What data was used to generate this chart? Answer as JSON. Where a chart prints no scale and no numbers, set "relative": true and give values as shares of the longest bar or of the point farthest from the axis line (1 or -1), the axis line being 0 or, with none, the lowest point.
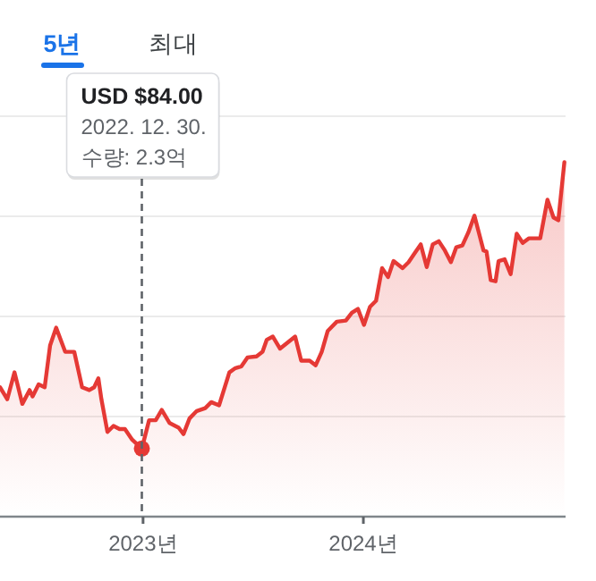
{
  "chart_data": {
    "type": "area",
    "relative": true,
    "x": [
      "2022-05-09",
      "2022-05-21",
      "2022-06-02",
      "2022-06-15",
      "2022-06-27",
      "2022-07-02",
      "2022-07-12",
      "2022-07-22",
      "2022-07-31",
      "2022-08-10",
      "2022-08-25",
      "2022-09-09",
      "2022-09-22",
      "2022-10-04",
      "2022-10-12",
      "2022-10-19",
      "2022-10-24",
      "2022-11-03",
      "2022-11-13",
      "2022-11-23",
      "2022-12-02",
      "2022-12-14",
      "2022-12-30",
      "2023-01-11",
      "2023-01-22",
      "2023-02-01",
      "2023-02-14",
      "2023-03-01",
      "2023-03-09",
      "2023-03-19",
      "2023-03-31",
      "2023-04-14",
      "2023-04-24",
      "2023-05-07",
      "2023-05-24",
      "2023-06-03",
      "2023-06-13",
      "2023-06-23",
      "2023-07-08",
      "2023-07-18",
      "2023-07-25",
      "2023-08-04",
      "2023-08-16",
      "2023-09-10",
      "2023-09-20",
      "2023-10-04",
      "2023-10-14",
      "2023-10-24",
      "2023-11-03",
      "2023-11-18",
      "2023-12-03",
      "2023-12-13",
      "2023-12-23",
      "2024-01-02",
      "2024-01-12",
      "2024-01-22",
      "2024-02-01",
      "2024-02-11",
      "2024-02-20",
      "2024-03-06",
      "2024-03-16",
      "2024-03-26",
      "2024-04-05",
      "2024-04-15",
      "2024-04-25",
      "2024-05-05",
      "2024-05-15",
      "2024-05-25",
      "2024-06-03",
      "2024-06-13",
      "2024-06-23",
      "2024-07-03",
      "2024-07-18",
      "2024-07-23",
      "2024-07-30",
      "2024-08-07",
      "2024-08-12",
      "2024-08-22",
      "2024-09-01",
      "2024-09-11",
      "2024-09-21",
      "2024-10-01",
      "2024-10-20",
      "2024-11-01",
      "2024-11-11",
      "2024-11-19",
      "2024-11-29"
    ],
    "series": [
      {
        "color": "#e53935",
        "values": [
          0.365,
          0.331,
          0.407,
          0.318,
          0.357,
          0.339,
          0.373,
          0.365,
          0.483,
          0.533,
          0.465,
          0.465,
          0.365,
          0.357,
          0.365,
          0.39,
          0.331,
          0.239,
          0.256,
          0.247,
          0.247,
          0.217,
          0.192,
          0.272,
          0.272,
          0.301,
          0.264,
          0.251,
          0.233,
          0.277,
          0.298,
          0.306,
          0.323,
          0.314,
          0.407,
          0.419,
          0.424,
          0.449,
          0.452,
          0.465,
          0.499,
          0.508,
          0.474,
          0.508,
          0.44,
          0.44,
          0.427,
          0.465,
          0.524,
          0.55,
          0.553,
          0.575,
          0.586,
          0.541,
          0.592,
          0.609,
          0.701,
          0.676,
          0.721,
          0.701,
          0.718,
          0.743,
          0.768,
          0.704,
          0.768,
          0.777,
          0.751,
          0.718,
          0.76,
          0.765,
          0.802,
          0.849,
          0.751,
          0.748,
          0.667,
          0.664,
          0.721,
          0.726,
          0.684,
          0.798,
          0.772,
          0.785,
          0.785,
          0.894,
          0.844,
          0.836,
          1
        ]
      }
    ],
    "xlim": [
      "2022-05-09",
      "2024-12-01"
    ],
    "xticks": [
      {
        "value": "2023-01-01",
        "label": "2023년"
      },
      {
        "value": "2024-01-01",
        "label": "2024년"
      }
    ],
    "grid": "y",
    "line_style": "solid",
    "marker": "none",
    "ref_lines": [
      {
        "axis": "x",
        "value": "2022-12-30",
        "color": "#5f6368",
        "line_style": "dashed"
      }
    ],
    "annotations": [
      "5년",
      "최대",
      "USD $84.00",
      "2022. 12. 30.",
      "수량: 2.3억"
    ]
  }
}
